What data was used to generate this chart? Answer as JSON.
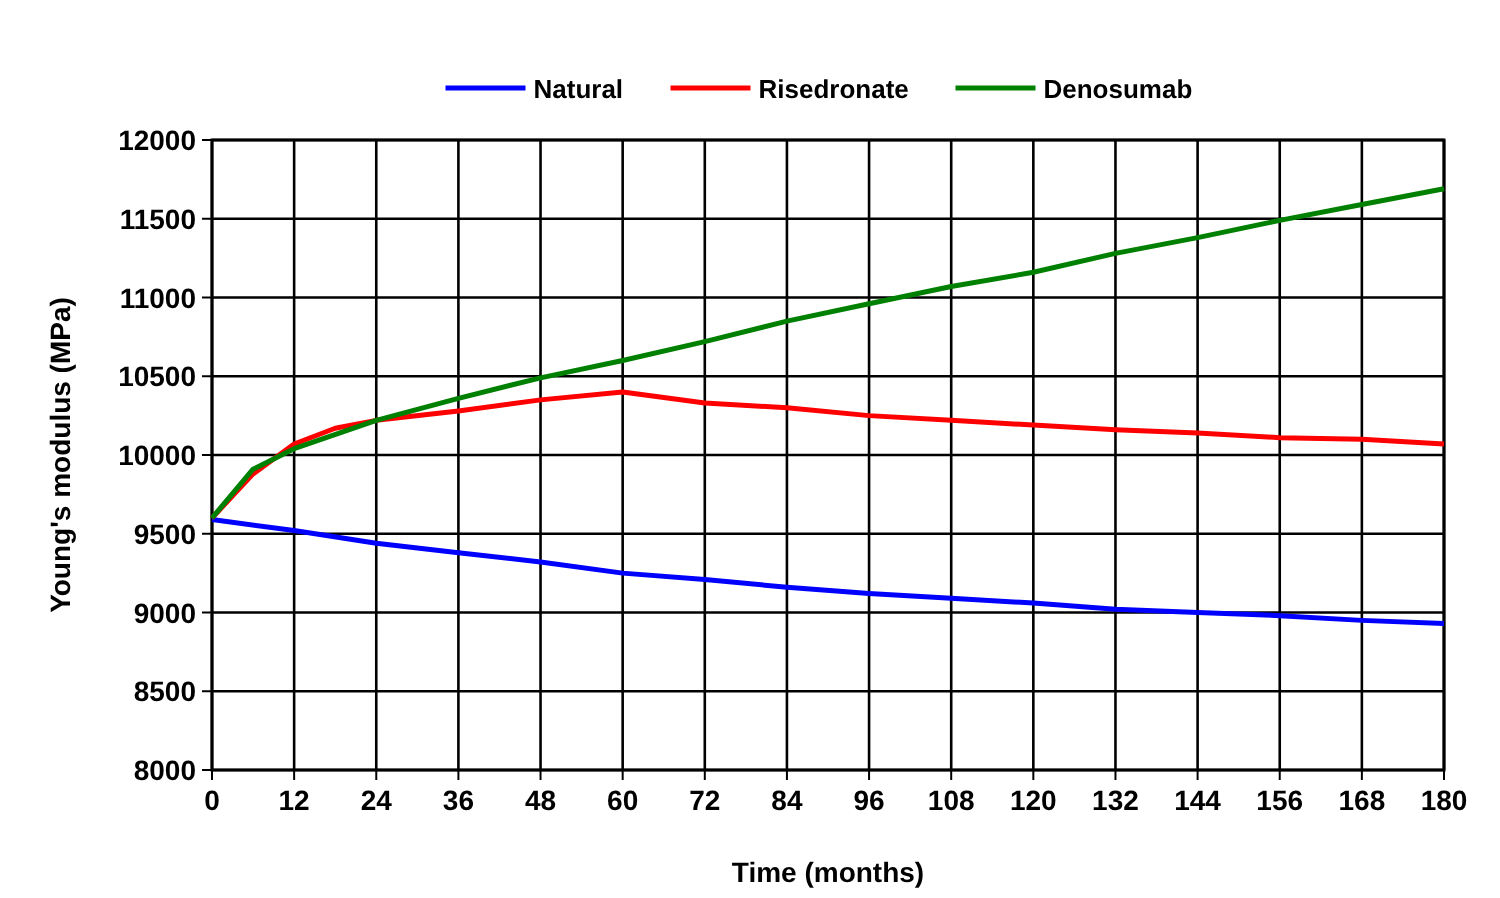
{
  "chart_data": {
    "type": "line",
    "xlabel": "Time (months)",
    "ylabel": "Young's modulus (MPa)",
    "xlim": [
      0,
      180
    ],
    "xticks": [
      0,
      12,
      24,
      36,
      48,
      60,
      72,
      84,
      96,
      108,
      120,
      132,
      144,
      156,
      168,
      180
    ],
    "ylim": [
      8000,
      12000
    ],
    "yticks": [
      8000,
      8500,
      9000,
      9500,
      10000,
      10500,
      11000,
      11500,
      12000
    ],
    "grid": true,
    "legend": "top",
    "marker": "none",
    "line_style": "solid",
    "series": [
      {
        "name": "Natural",
        "color": "#0000ff",
        "x": [
          0,
          12,
          24,
          36,
          48,
          60,
          72,
          84,
          96,
          108,
          120,
          132,
          144,
          156,
          168,
          180
        ],
        "values": [
          9590,
          9520,
          9440,
          9380,
          9320,
          9250,
          9210,
          9160,
          9120,
          9090,
          9060,
          9020,
          9000,
          8980,
          8950,
          8930
        ]
      },
      {
        "name": "Risedronate",
        "color": "#ff0000",
        "x": [
          0,
          6,
          12,
          18,
          24,
          36,
          48,
          60,
          72,
          84,
          96,
          108,
          120,
          132,
          144,
          156,
          168,
          180
        ],
        "values": [
          9600,
          9880,
          10070,
          10170,
          10220,
          10280,
          10350,
          10400,
          10330,
          10300,
          10250,
          10220,
          10190,
          10160,
          10140,
          10110,
          10100,
          10070
        ]
      },
      {
        "name": "Denosumab",
        "color": "#008000",
        "x": [
          0,
          6,
          12,
          24,
          36,
          48,
          60,
          72,
          84,
          96,
          108,
          120,
          132,
          144,
          156,
          168,
          180
        ],
        "values": [
          9600,
          9910,
          10040,
          10220,
          10360,
          10490,
          10600,
          10720,
          10850,
          10960,
          11070,
          11160,
          11280,
          11380,
          11490,
          11590,
          11690
        ]
      }
    ]
  }
}
